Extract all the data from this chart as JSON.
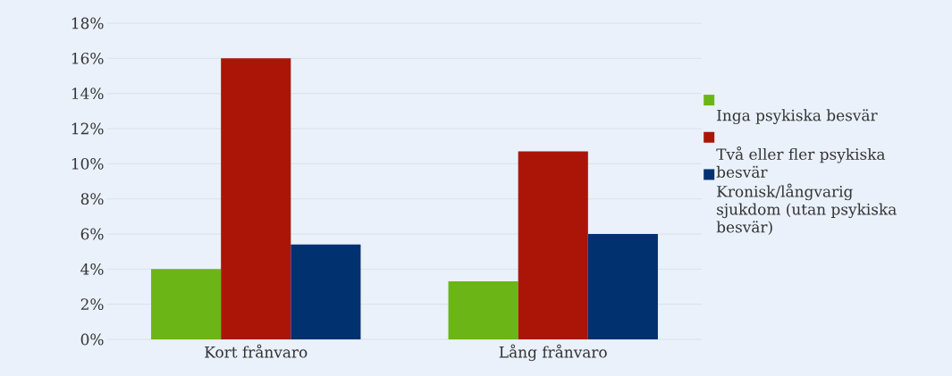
{
  "chart_data": {
    "type": "bar",
    "categories": [
      "Kort frånvaro",
      "Lång frånvaro"
    ],
    "series": [
      {
        "name": "Inga psykiska besvär",
        "color": "#6cb516",
        "values": [
          4.0,
          3.3
        ]
      },
      {
        "name": "Två eller fler psykiska besvär",
        "color": "#ab1508",
        "values": [
          16.0,
          10.7
        ]
      },
      {
        "name": "Kronisk/långvarig sjukdom (utan psykiska besvär)",
        "color": "#023170",
        "values": [
          5.4,
          6.0
        ]
      }
    ],
    "ylim": [
      0,
      18
    ],
    "yticks": [
      {
        "value": 0,
        "label": "0%"
      },
      {
        "value": 2,
        "label": "2%"
      },
      {
        "value": 4,
        "label": "4%"
      },
      {
        "value": 6,
        "label": "6%"
      },
      {
        "value": 8,
        "label": "8%"
      },
      {
        "value": 10,
        "label": "10%"
      },
      {
        "value": 12,
        "label": "12%"
      },
      {
        "value": 14,
        "label": "14%"
      },
      {
        "value": 16,
        "label": "16%"
      },
      {
        "value": 18,
        "label": "18%"
      }
    ],
    "grid": "y",
    "legend": "right"
  }
}
